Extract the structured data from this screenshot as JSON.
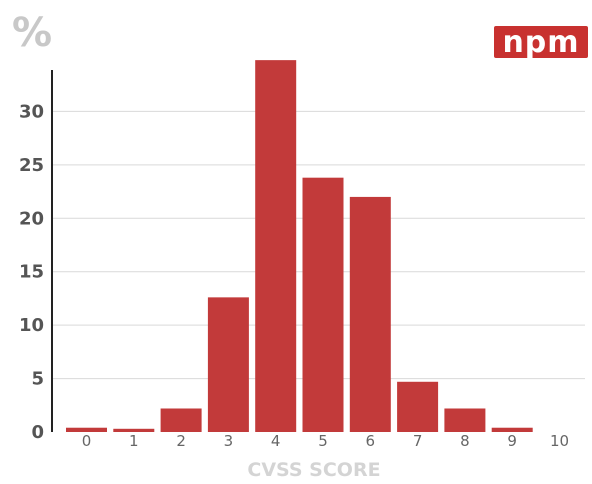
{
  "chart_data": {
    "type": "bar",
    "categories": [
      "0",
      "1",
      "2",
      "3",
      "4",
      "5",
      "6",
      "7",
      "8",
      "9",
      "10"
    ],
    "values": [
      0.4,
      0.3,
      2.2,
      12.6,
      34.8,
      23.8,
      22.0,
      4.7,
      2.2,
      0.4,
      0
    ],
    "yticks": [
      0,
      5,
      10,
      15,
      20,
      25,
      30
    ],
    "ylim": [
      0,
      35
    ],
    "xlabel": "CVSS SCORE",
    "ylabel": "%",
    "grid": true,
    "bar_color": "#c23a3a"
  },
  "logo": {
    "text": "npm",
    "color": "#c8312f"
  }
}
